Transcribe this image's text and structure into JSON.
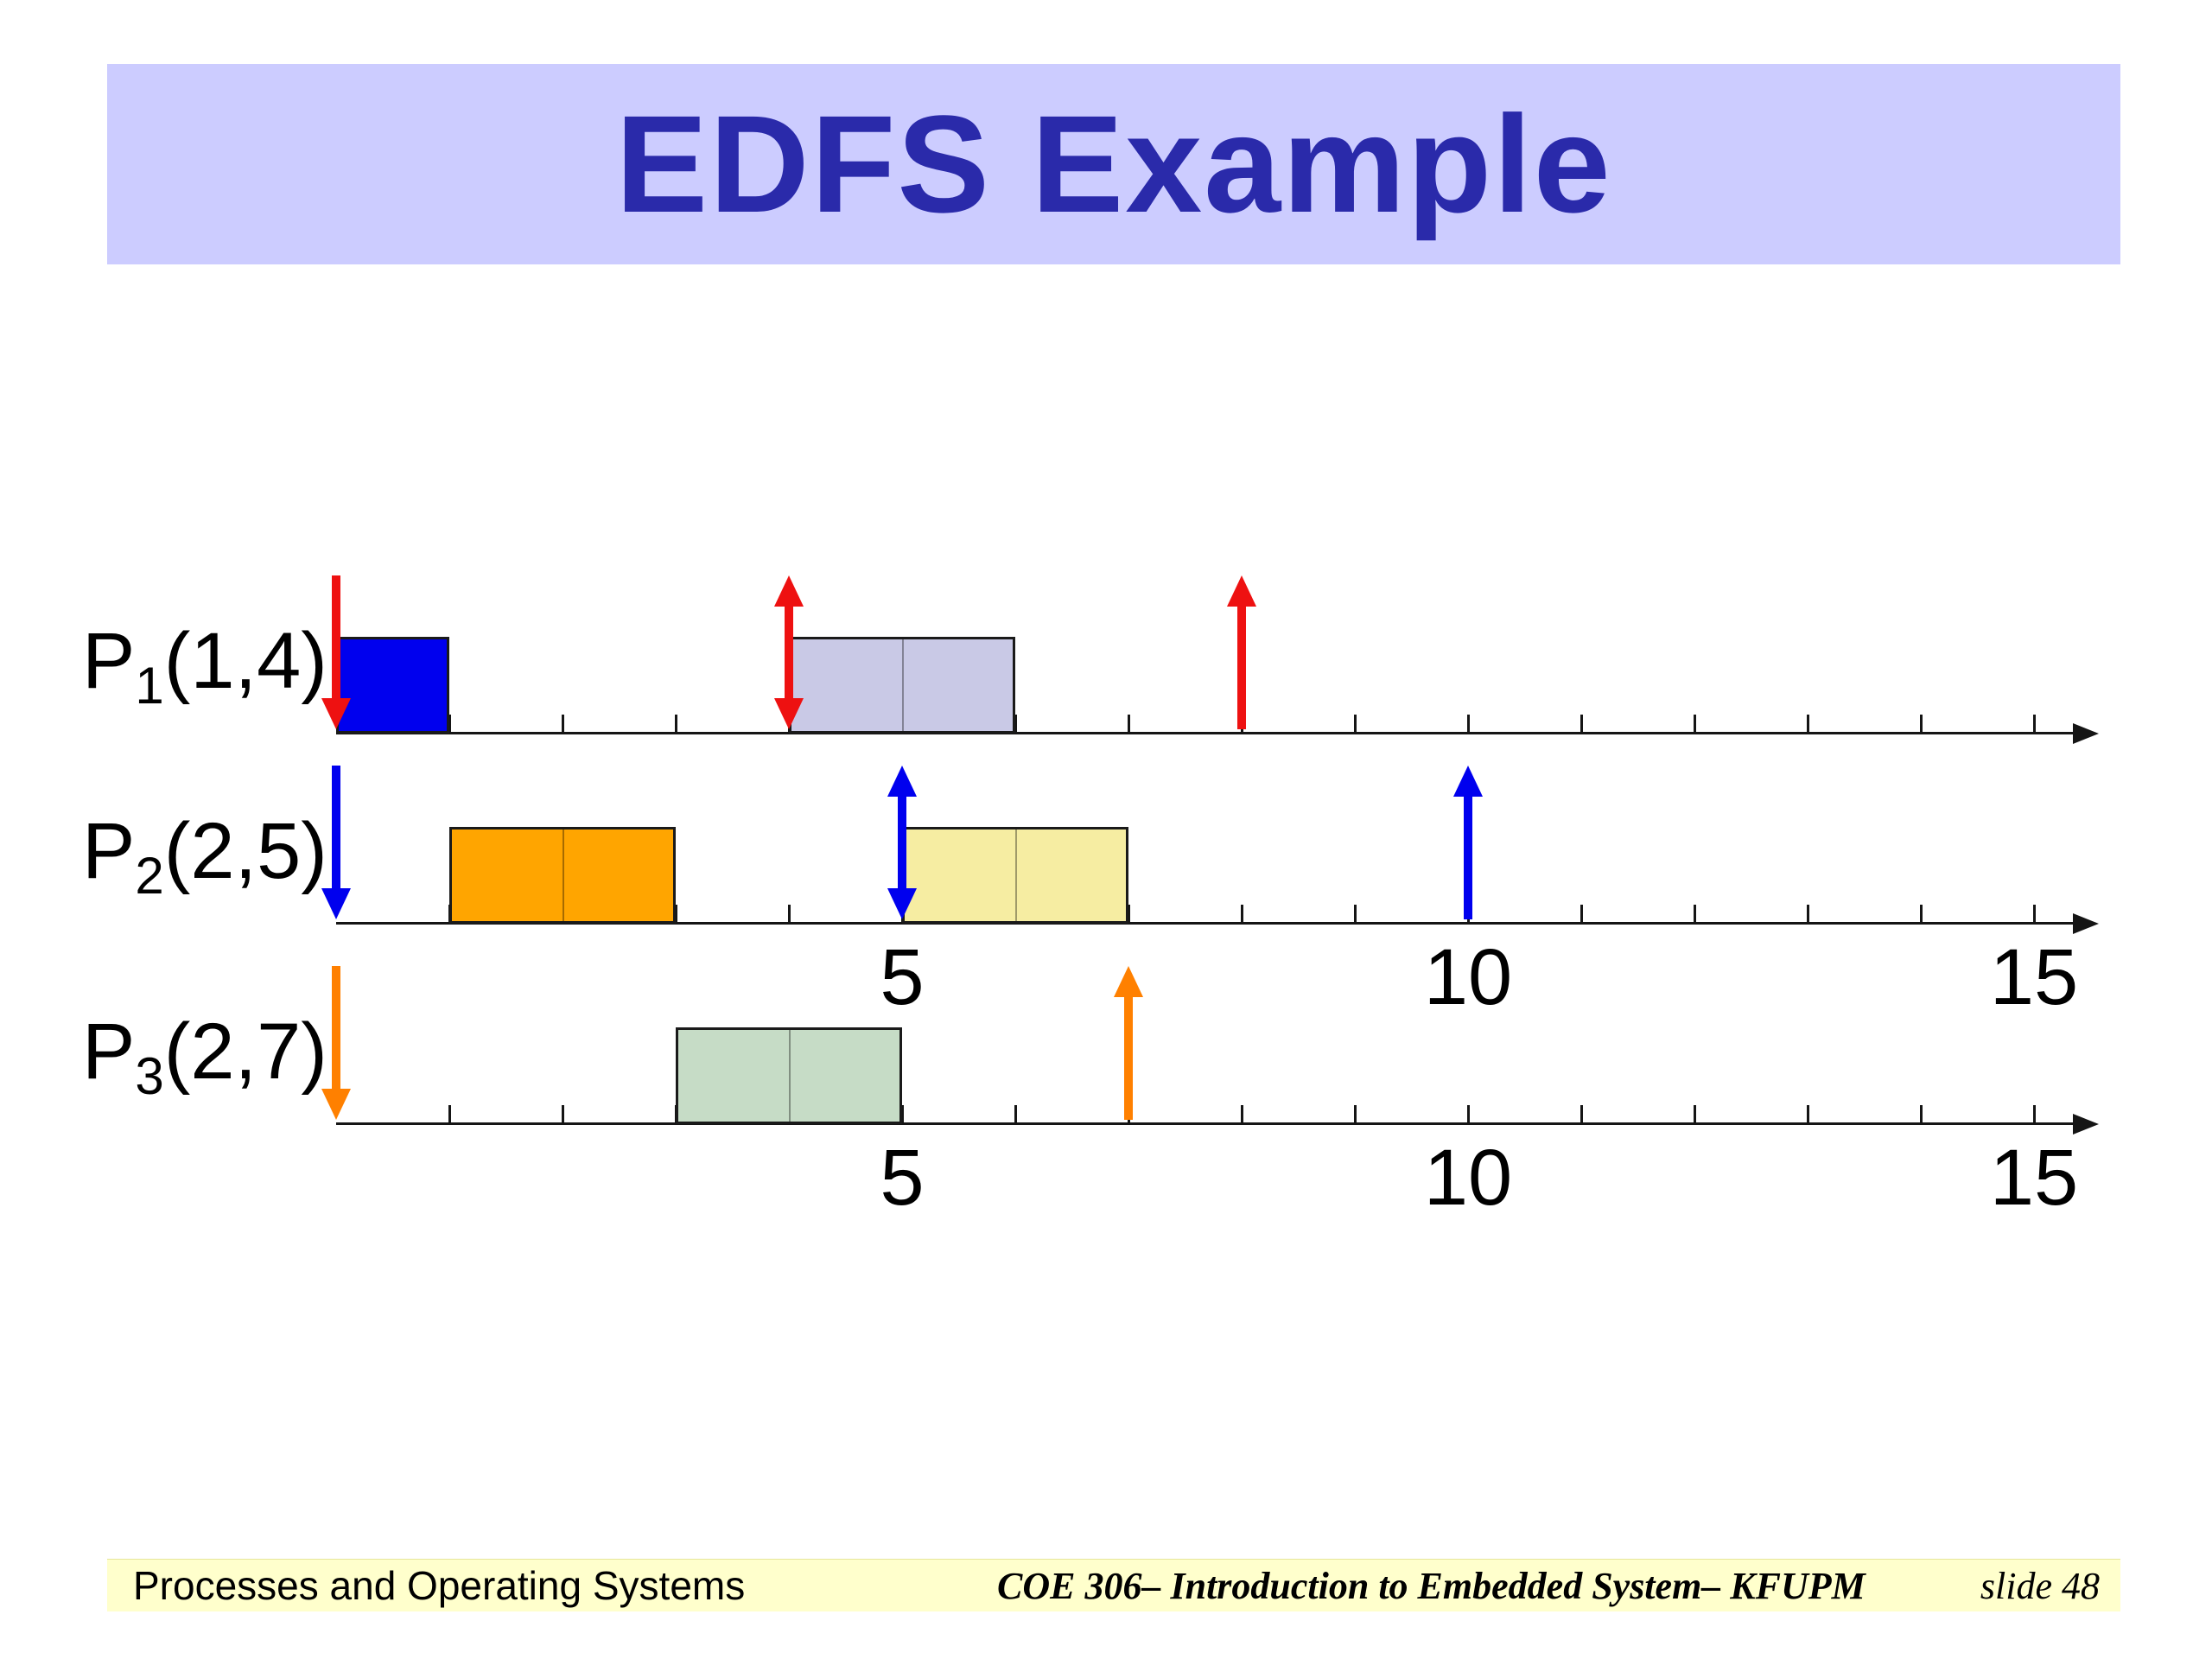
{
  "title": "EDFS Example",
  "footer": {
    "left": "Processes and Operating Systems",
    "center": "COE 306– Introduction to Embedded System– KFUPM",
    "right": "slide 48"
  },
  "chart_data": {
    "type": "timeline",
    "title": "EDFS Example",
    "description": "Earliest-deadline-first scheduling timelines for three periodic processes",
    "x_axis": {
      "min": 0,
      "max": 15,
      "labeled_ticks": [
        "5",
        "10",
        "15"
      ]
    },
    "processes": [
      {
        "name": "P",
        "subscript": "1",
        "params": "(1,4)",
        "arrow_color": "#ee1111",
        "show_axis_labels": false,
        "blocks": [
          {
            "start": 0,
            "end": 1,
            "color": "#0000ee"
          },
          {
            "start": 4,
            "end": 6,
            "color": "#c9c9e6"
          }
        ],
        "arrows": [
          {
            "time": 0,
            "dir": "down"
          },
          {
            "time": 4,
            "dir": "both"
          },
          {
            "time": 8,
            "dir": "up"
          }
        ]
      },
      {
        "name": "P",
        "subscript": "2",
        "params": "(2,5)",
        "arrow_color": "#0000ee",
        "show_axis_labels": true,
        "blocks": [
          {
            "start": 1,
            "end": 3,
            "color": "#ffa500"
          },
          {
            "start": 5,
            "end": 7,
            "color": "#f6eda2"
          }
        ],
        "arrows": [
          {
            "time": 0,
            "dir": "down"
          },
          {
            "time": 5,
            "dir": "both"
          },
          {
            "time": 10,
            "dir": "up"
          }
        ]
      },
      {
        "name": "P",
        "subscript": "3",
        "params": "(2,7)",
        "arrow_color": "#ff8000",
        "show_axis_labels": true,
        "blocks": [
          {
            "start": 3,
            "end": 5,
            "color": "#c6dcc6"
          }
        ],
        "arrows": [
          {
            "time": 0,
            "dir": "down"
          },
          {
            "time": 7,
            "dir": "up"
          }
        ]
      }
    ]
  }
}
